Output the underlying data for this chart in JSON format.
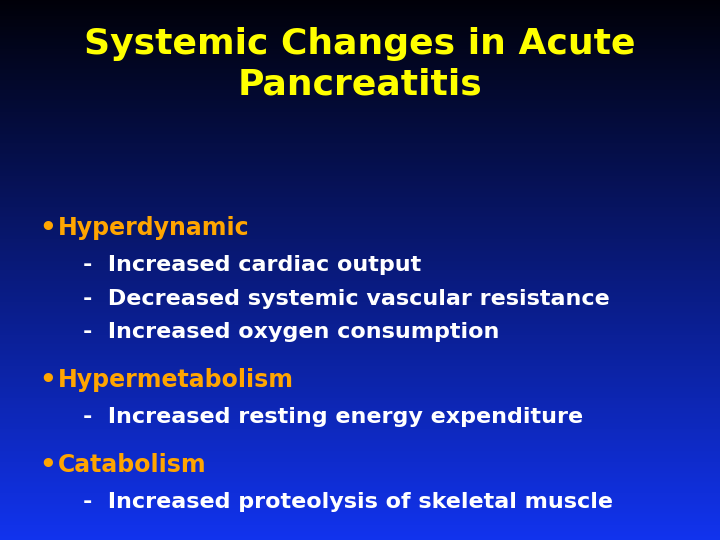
{
  "title_line1": "Systemic Changes in Acute",
  "title_line2": "Pancreatitis",
  "title_color": "#FFFF00",
  "title_fontsize": 26,
  "background_top": "#000008",
  "background_bottom": "#1133EE",
  "bullet_color": "#FFA500",
  "subitem_color": "#FFFFFF",
  "bullet_fontsize": 17,
  "subitem_fontsize": 16,
  "bullets": [
    {
      "header": "Hyperdynamic",
      "subitems": [
        "Increased cardiac output",
        "Decreased systemic vascular resistance",
        "Increased oxygen consumption"
      ]
    },
    {
      "header": "Hypermetabolism",
      "subitems": [
        "Increased resting energy expenditure"
      ]
    },
    {
      "header": "Catabolism",
      "subitems": [
        "Increased proteolysis of skeletal muscle"
      ]
    }
  ]
}
